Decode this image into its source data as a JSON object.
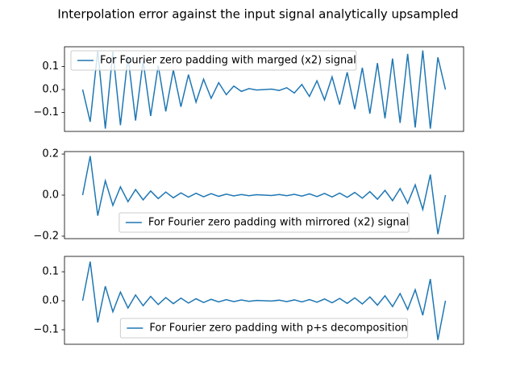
{
  "title": "Interpolation error against the input signal analytically upsampled",
  "chart_data": [
    {
      "type": "line",
      "legend": "upper left",
      "xlim": [
        -2.4,
        50.4
      ],
      "ylim": [
        -0.182,
        0.186
      ],
      "yticks": [
        {
          "value": -0.1,
          "label": "−0.1"
        },
        {
          "value": 0,
          "label": "0.0"
        },
        0.1
      ],
      "x": [
        0,
        1,
        2,
        3,
        4,
        5,
        6,
        7,
        8,
        9,
        10,
        11,
        12,
        13,
        14,
        15,
        16,
        17,
        18,
        19,
        20,
        21,
        22,
        23,
        24,
        25,
        26,
        27,
        28,
        29,
        30,
        31,
        32,
        33,
        34,
        35,
        36,
        37,
        38,
        39,
        40,
        41,
        42,
        43,
        44,
        45,
        46,
        47,
        48
      ],
      "series": [
        {
          "name": "For Fourier zero padding with marged (x2) signal",
          "color": "#1f77b4",
          "values": [
            0,
            -0.14,
            0.17,
            -0.17,
            0.165,
            -0.155,
            0.145,
            -0.135,
            0.125,
            -0.115,
            0.105,
            -0.095,
            0.085,
            -0.075,
            0.065,
            -0.055,
            0.045,
            -0.038,
            0.03,
            -0.022,
            0.015,
            -0.008,
            0.004,
            -0.002,
            0,
            0.002,
            -0.004,
            0.008,
            -0.015,
            0.022,
            -0.03,
            0.038,
            -0.045,
            0.055,
            -0.065,
            0.075,
            -0.085,
            0.095,
            -0.105,
            0.115,
            -0.125,
            0.135,
            -0.145,
            0.155,
            -0.165,
            0.17,
            -0.17,
            0.14,
            0
          ]
        }
      ]
    },
    {
      "type": "line",
      "legend": "lower center",
      "xlim": [
        -2.4,
        50.4
      ],
      "ylim": [
        -0.212,
        0.212
      ],
      "yticks": [
        {
          "value": -0.2,
          "label": "−0.2"
        },
        {
          "value": 0,
          "label": "0.0"
        },
        0.2
      ],
      "x": [
        0,
        1,
        2,
        3,
        4,
        5,
        6,
        7,
        8,
        9,
        10,
        11,
        12,
        13,
        14,
        15,
        16,
        17,
        18,
        19,
        20,
        21,
        22,
        23,
        24,
        25,
        26,
        27,
        28,
        29,
        30,
        31,
        32,
        33,
        34,
        35,
        36,
        37,
        38,
        39,
        40,
        41,
        42,
        43,
        44,
        45,
        46,
        47,
        48
      ],
      "series": [
        {
          "name": "For Fourier zero padding with mirrored (x2) signal",
          "color": "#1f77b4",
          "values": [
            0,
            0.19,
            -0.1,
            0.07,
            -0.05,
            0.04,
            -0.032,
            0.027,
            -0.023,
            0.02,
            -0.017,
            0.015,
            -0.013,
            0.011,
            -0.01,
            0.009,
            -0.008,
            0.007,
            -0.006,
            0.005,
            -0.004,
            0.003,
            -0.003,
            0.002,
            0,
            -0.002,
            0.003,
            -0.003,
            0.004,
            -0.005,
            0.006,
            -0.007,
            0.008,
            -0.009,
            0.01,
            -0.011,
            0.013,
            -0.015,
            0.017,
            -0.02,
            0.023,
            -0.027,
            0.032,
            -0.04,
            0.05,
            -0.07,
            0.1,
            -0.19,
            0
          ]
        }
      ]
    },
    {
      "type": "line",
      "legend": "lower center",
      "xlim": [
        -2.4,
        50.4
      ],
      "ylim": [
        -0.15,
        0.153
      ],
      "yticks": [
        {
          "value": -0.1,
          "label": "−0.1"
        },
        {
          "value": 0,
          "label": "0.0"
        },
        0.1
      ],
      "x": [
        0,
        1,
        2,
        3,
        4,
        5,
        6,
        7,
        8,
        9,
        10,
        11,
        12,
        13,
        14,
        15,
        16,
        17,
        18,
        19,
        20,
        21,
        22,
        23,
        24,
        25,
        26,
        27,
        28,
        29,
        30,
        31,
        32,
        33,
        34,
        35,
        36,
        37,
        38,
        39,
        40,
        41,
        42,
        43,
        44,
        45,
        46,
        47,
        48
      ],
      "series": [
        {
          "name": "For Fourier zero padding with p+s decomposition",
          "color": "#1f77b4",
          "values": [
            0,
            0.135,
            -0.075,
            0.05,
            -0.038,
            0.03,
            -0.025,
            0.02,
            -0.017,
            0.015,
            -0.013,
            0.011,
            -0.01,
            0.009,
            -0.008,
            0.007,
            -0.006,
            0.005,
            -0.004,
            0.004,
            -0.003,
            0.003,
            -0.002,
            0.001,
            0,
            -0.001,
            0.002,
            -0.003,
            0.003,
            -0.004,
            0.004,
            -0.005,
            0.006,
            -0.007,
            0.008,
            -0.009,
            0.01,
            -0.011,
            0.013,
            -0.015,
            0.017,
            -0.02,
            0.025,
            -0.03,
            0.038,
            -0.05,
            0.075,
            -0.135,
            0
          ]
        }
      ]
    }
  ]
}
